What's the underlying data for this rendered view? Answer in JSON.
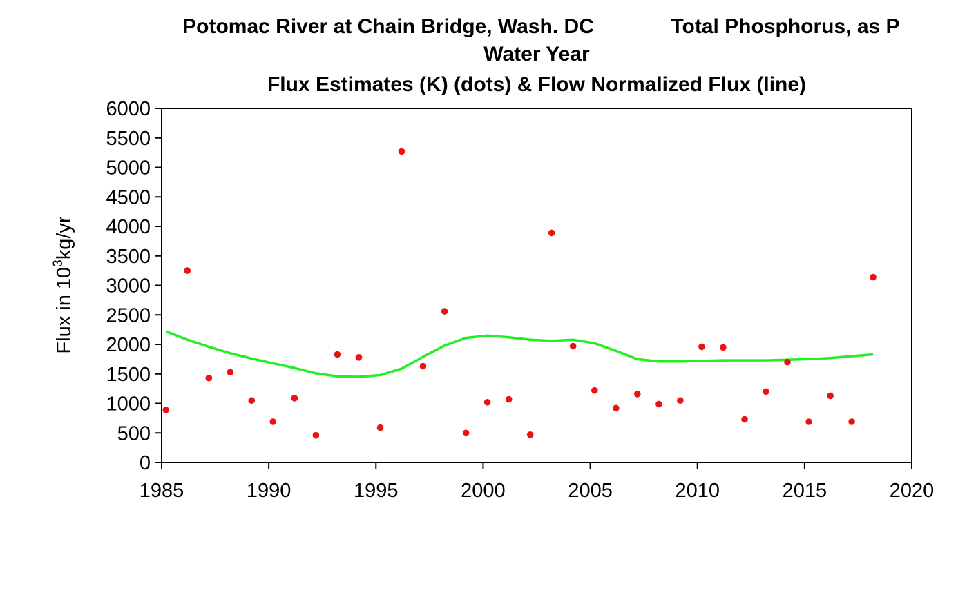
{
  "chart_data": {
    "type": "scatter",
    "title_line1_left": "Potomac River at Chain Bridge, Wash. DC",
    "title_line1_right": "Total Phosphorus, as P",
    "title_line2": "Water Year",
    "title_line3": "Flux Estimates (K) (dots) & Flow Normalized Flux (line)",
    "ylabel_prefix": "Flux in 10",
    "ylabel_superscript": "3",
    "ylabel_suffix": "kg/yr",
    "xlabel": "",
    "xlim": [
      1985,
      2020
    ],
    "ylim": [
      0,
      6000
    ],
    "x_ticks": [
      "1985",
      "1990",
      "1995",
      "2000",
      "2005",
      "2010",
      "2015",
      "2020"
    ],
    "y_ticks": [
      "0",
      "500",
      "1000",
      "1500",
      "2000",
      "2500",
      "3000",
      "3500",
      "4000",
      "4500",
      "5000",
      "5500",
      "6000"
    ],
    "grid": false,
    "series": [
      {
        "kind": "points",
        "color": "#ee1111",
        "x": [
          1985.2,
          1986.2,
          1987.2,
          1988.2,
          1989.2,
          1990.2,
          1991.2,
          1992.2,
          1993.2,
          1994.2,
          1995.2,
          1996.2,
          1997.2,
          1998.2,
          1999.2,
          2000.2,
          2001.2,
          2002.2,
          2003.2,
          2004.2,
          2005.2,
          2006.2,
          2007.2,
          2008.2,
          2009.2,
          2010.2,
          2011.2,
          2012.2,
          2013.2,
          2014.2,
          2015.2,
          2016.2,
          2017.2,
          2018.2
        ],
        "y": [
          890,
          3250,
          1430,
          1530,
          1050,
          690,
          1090,
          460,
          1830,
          1780,
          590,
          5270,
          1630,
          2560,
          500,
          1020,
          1070,
          470,
          3890,
          1970,
          1220,
          920,
          1160,
          990,
          1050,
          1960,
          1950,
          730,
          1200,
          1700,
          690,
          1130,
          690,
          3140
        ]
      },
      {
        "kind": "line",
        "color": "#22ee22",
        "x": [
          1985.2,
          1986.2,
          1987.2,
          1988.2,
          1989.2,
          1990.2,
          1991.2,
          1992.2,
          1993.2,
          1994.2,
          1995.2,
          1996.2,
          1997.2,
          1998.2,
          1999.2,
          2000.2,
          2001.2,
          2002.2,
          2003.2,
          2004.2,
          2005.2,
          2006.2,
          2007.2,
          2008.2,
          2009.2,
          2010.2,
          2011.2,
          2012.2,
          2013.2,
          2014.2,
          2015.2,
          2016.2,
          2017.2,
          2018.2
        ],
        "y": [
          2220,
          2080,
          1960,
          1850,
          1760,
          1680,
          1600,
          1510,
          1460,
          1450,
          1480,
          1590,
          1790,
          1980,
          2110,
          2150,
          2120,
          2080,
          2060,
          2080,
          2020,
          1890,
          1750,
          1710,
          1710,
          1720,
          1730,
          1730,
          1730,
          1740,
          1750,
          1770,
          1800,
          1830
        ]
      }
    ]
  }
}
